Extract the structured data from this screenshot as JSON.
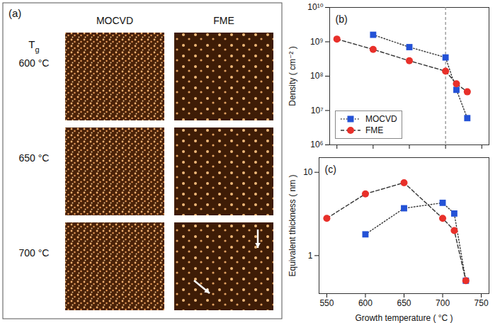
{
  "panel_a": {
    "label": "(a)",
    "row_header": "Tg",
    "columns": [
      "MOCVD",
      "FME"
    ],
    "rows": [
      "600 °C",
      "650 °C",
      "700 °C"
    ]
  },
  "chart_data": [
    {
      "type": "line",
      "panel_label": "(b)",
      "y_label": "Density ( cm⁻² )",
      "x": [
        550,
        600,
        650,
        700,
        715,
        730
      ],
      "series": [
        {
          "name": "MOCVD",
          "color": "#2452d6",
          "marker": "square",
          "line_style": "dotted",
          "values": [
            null,
            1600000000,
            700000000,
            350000000,
            40000000,
            6000000
          ]
        },
        {
          "name": "FME",
          "color": "#e8302a",
          "marker": "circle",
          "line_style": "dashed",
          "values": [
            1200000000,
            600000000,
            280000000,
            140000000,
            60000000,
            35000000
          ]
        }
      ],
      "vline": 700,
      "xlim": [
        540,
        760
      ],
      "xticks": [
        550,
        600,
        650,
        700,
        750
      ],
      "ylim": [
        1000000,
        10000000000
      ],
      "yticks": [
        {
          "value": 1000000,
          "label": "10⁶"
        },
        {
          "value": 10000000,
          "label": "10⁷"
        },
        {
          "value": 100000000,
          "label": "10⁸"
        },
        {
          "value": 1000000000,
          "label": "10⁹"
        },
        {
          "value": 10000000000,
          "label": "10¹⁰"
        }
      ],
      "log": "y",
      "tick_labels": "y",
      "legend": "lower left"
    },
    {
      "type": "line",
      "panel_label": "(c)",
      "x_label": "Growth temperature ( °C )",
      "y_label": "Equivalent thickness ( nm )",
      "x": [
        550,
        600,
        650,
        700,
        715,
        730
      ],
      "series": [
        {
          "name": "MOCVD",
          "color": "#2452d6",
          "marker": "square",
          "line_style": "dotted",
          "values": [
            null,
            1.8,
            3.7,
            4.3,
            3.2,
            0.5
          ]
        },
        {
          "name": "FME",
          "color": "#e8302a",
          "marker": "circle",
          "line_style": "dashed",
          "values": [
            2.8,
            5.5,
            7.5,
            2.8,
            2.0,
            0.5
          ]
        }
      ],
      "xlim": [
        540,
        760
      ],
      "xticks": [
        550,
        600,
        650,
        700,
        750
      ],
      "ylim": [
        0.35,
        15
      ],
      "yticks": [
        1,
        10
      ],
      "log": "y"
    }
  ]
}
